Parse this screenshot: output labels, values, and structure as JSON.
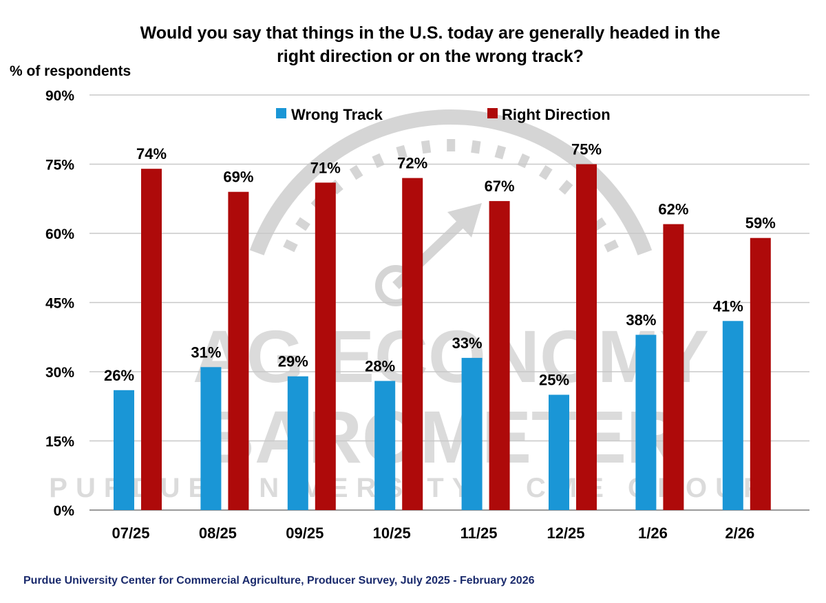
{
  "chart_data": {
    "type": "bar",
    "title": "Would you say that things in the U.S. today are generally headed in the right direction or on the wrong track?",
    "title_lines": [
      "Would you say that things in the U.S. today are generally headed in the",
      "right direction or on the wrong track?"
    ],
    "ylabel": "% of respondents",
    "xlabel": "",
    "ylim": [
      0,
      90
    ],
    "yticks": [
      0,
      15,
      30,
      45,
      60,
      75,
      90
    ],
    "ytick_labels": [
      "0%",
      "15%",
      "30%",
      "45%",
      "60%",
      "75%",
      "90%"
    ],
    "grid": true,
    "legend_placement": "top-center",
    "categories": [
      "07/25",
      "08/25",
      "09/25",
      "10/25",
      "11/25",
      "12/25",
      "1/26",
      "2/26"
    ],
    "series": [
      {
        "name": "Wrong Track",
        "color": "#1a96d6",
        "values": [
          26,
          31,
          29,
          28,
          33,
          25,
          38,
          41
        ]
      },
      {
        "name": "Right Direction",
        "color": "#ae0a0a",
        "values": [
          74,
          69,
          71,
          72,
          67,
          75,
          62,
          59
        ]
      }
    ],
    "value_label_suffix": "%",
    "source": "Purdue University Center for Commercial Agriculture, Producer Survey, July 2025 - February 2026"
  },
  "watermark": {
    "logo_lines": [
      "AG ECONOMY",
      "BAROMETER",
      "PURDUE UNIVERSITY | CME GROUP"
    ]
  }
}
